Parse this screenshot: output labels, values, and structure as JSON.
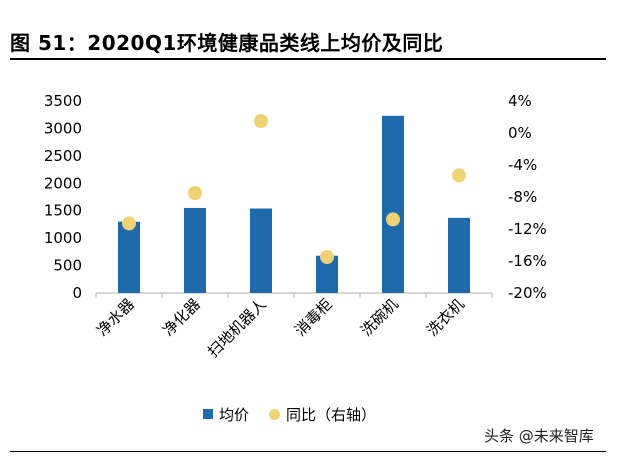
{
  "figure": {
    "title": "图  51：2020Q1环境健康品类线上均价及同比",
    "watermark": "头条 @未来智库"
  },
  "legend": {
    "bar_label": "均价",
    "dot_label": "同比（右轴）"
  },
  "colors": {
    "bar": "#1F6AAB",
    "dot": "#F0D276",
    "axis": "#B0B0B0"
  },
  "chart_data": {
    "type": "bar",
    "categories": [
      "净水器",
      "净化器",
      "扫地机器人",
      "消毒柜",
      "洗碗机",
      "洗衣机"
    ],
    "series": [
      {
        "name": "均价",
        "type": "bar",
        "axis": "left",
        "values": [
          1300,
          1550,
          1540,
          680,
          3230,
          1370
        ]
      },
      {
        "name": "同比（右轴）",
        "type": "scatter",
        "axis": "right",
        "unit": "%",
        "values": [
          -11.3,
          -7.5,
          1.5,
          -15.5,
          -10.8,
          -5.3
        ]
      }
    ],
    "y_left": {
      "lim": [
        0,
        3500
      ],
      "ticks": [
        "0",
        "500",
        "1000",
        "1500",
        "2000",
        "2500",
        "3000",
        "3500"
      ]
    },
    "y_right": {
      "lim": [
        -20,
        4
      ],
      "ticks": [
        "-20%",
        "-16%",
        "-12%",
        "-8%",
        "-4%",
        "0%",
        "4%"
      ]
    },
    "grid": false,
    "legend_position": "bottom"
  }
}
